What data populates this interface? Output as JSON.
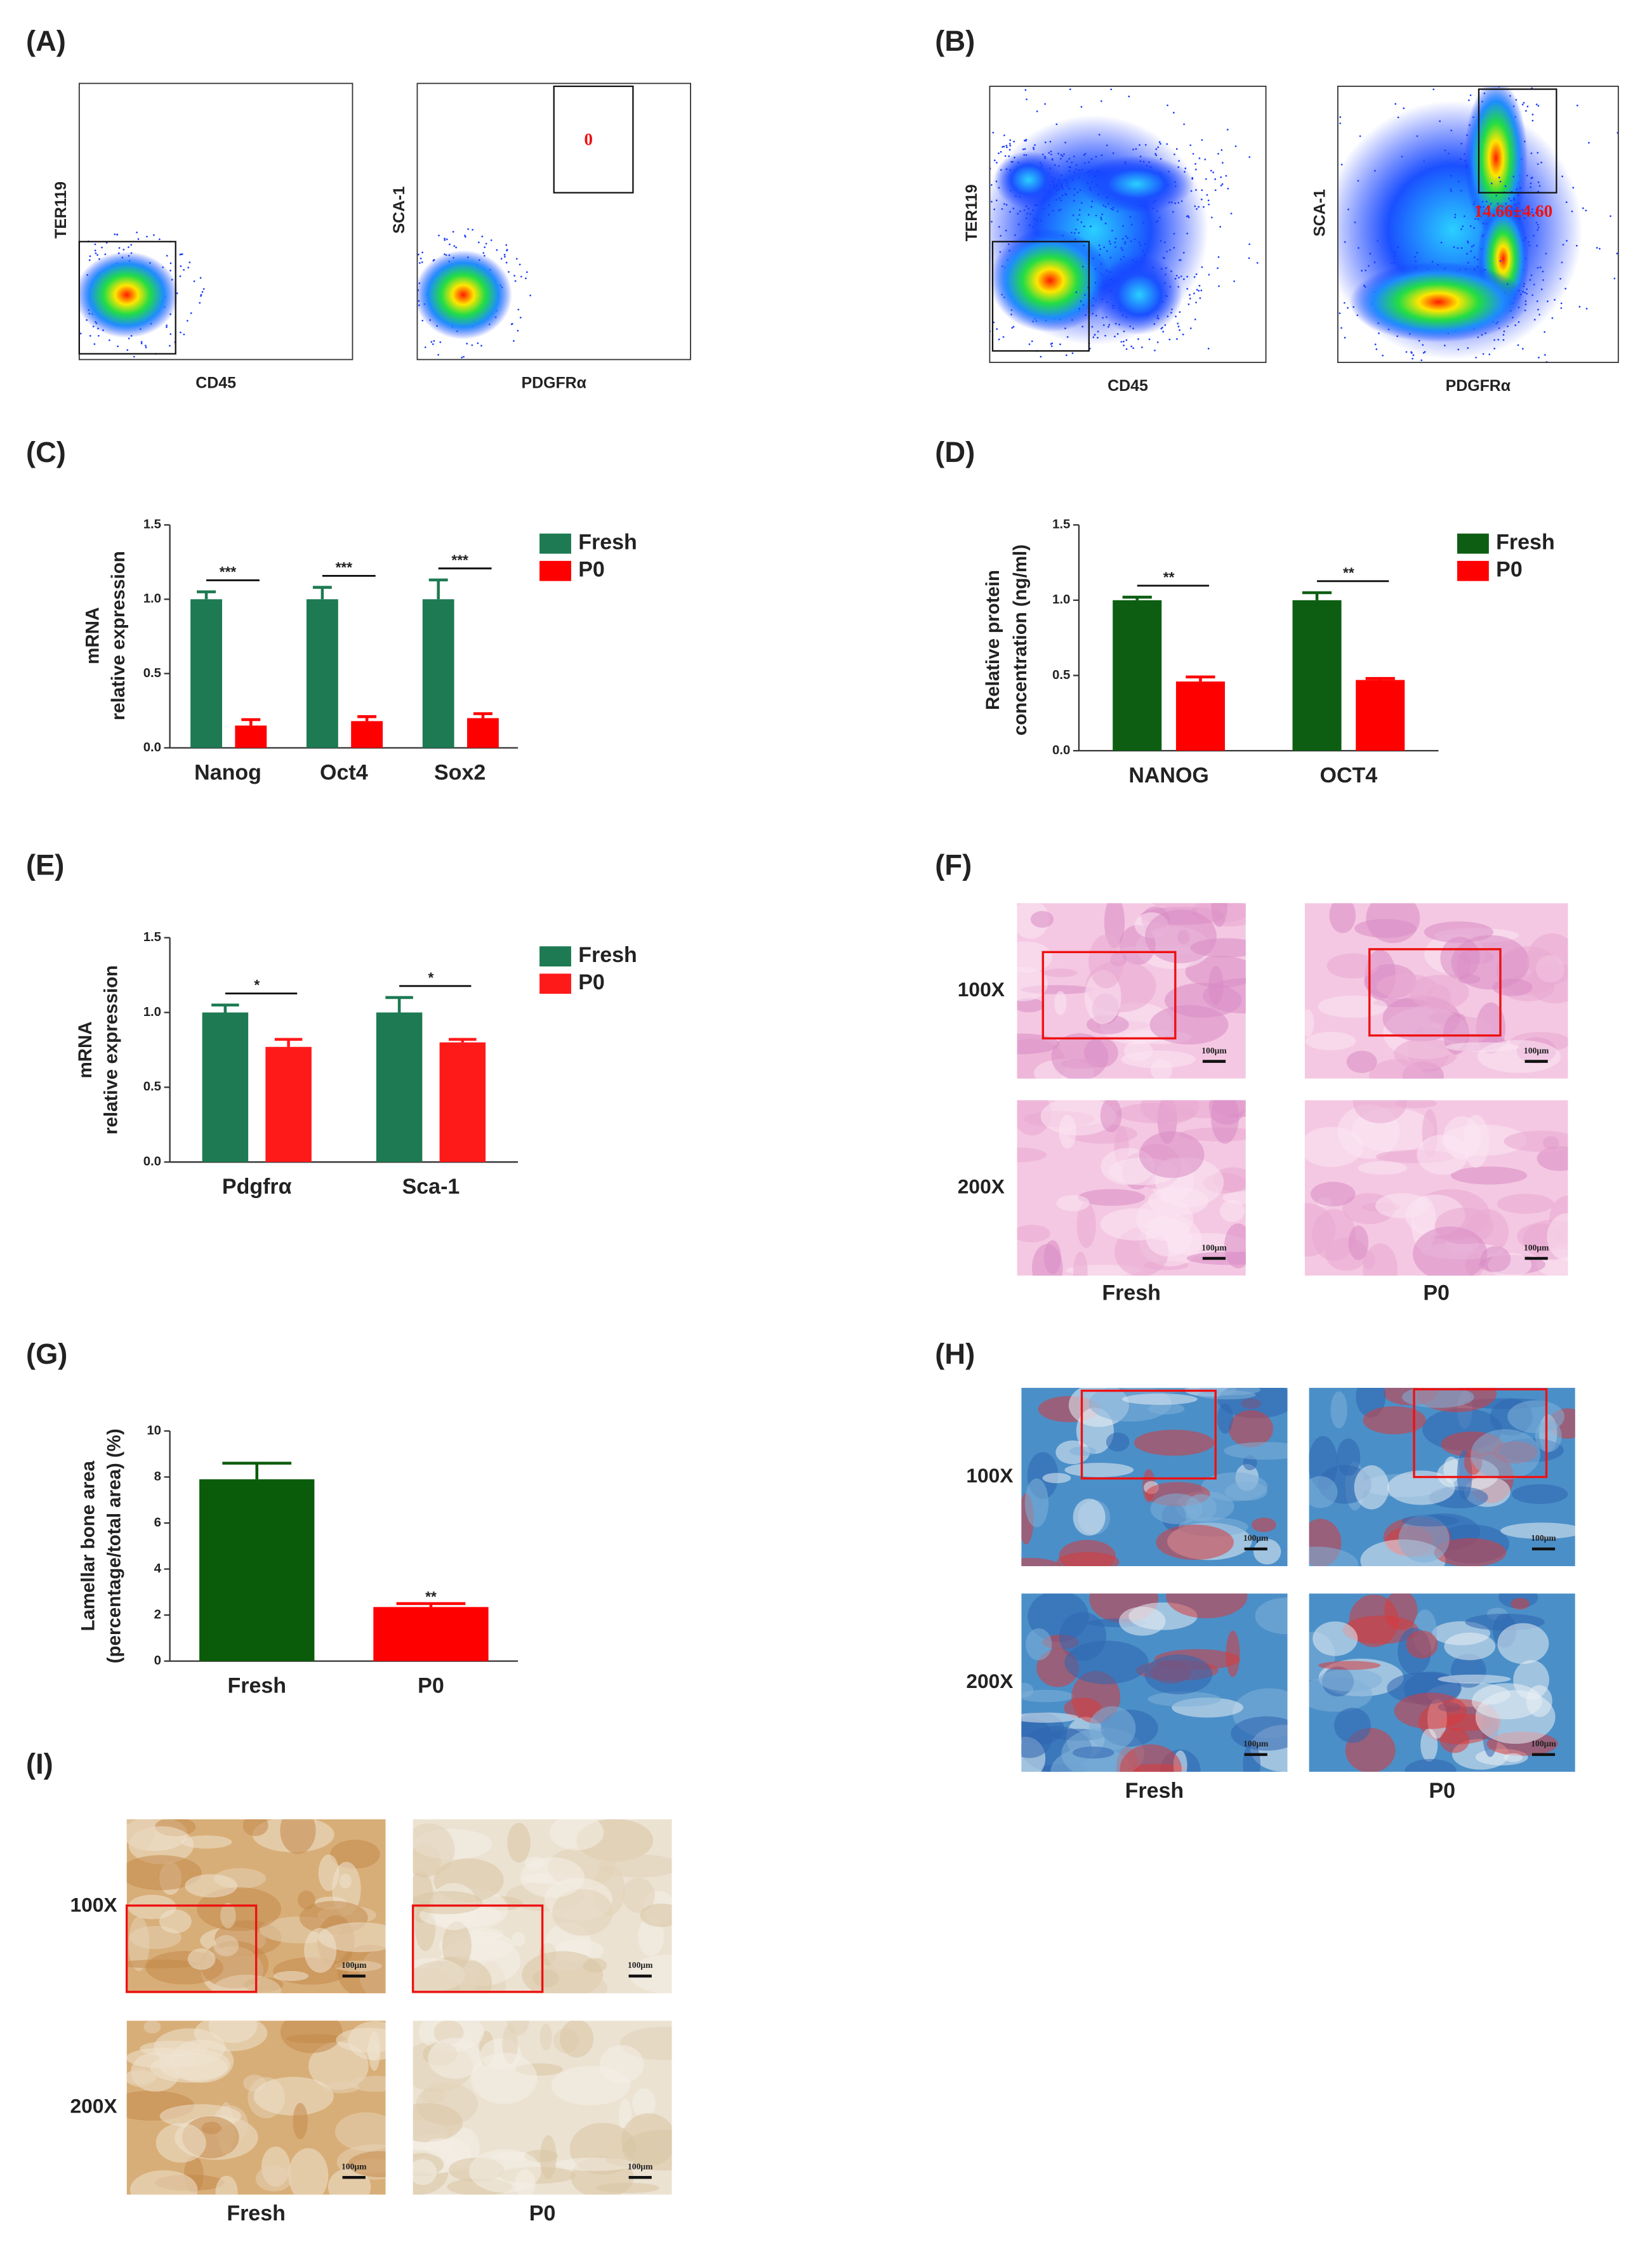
{
  "panel_labels": [
    "(A)",
    "(B)",
    "(C)",
    "(D)",
    "(E)",
    "(F)",
    "(G)",
    "(H)",
    "(I)"
  ],
  "flow": [
    {
      "plots": [
        {
          "x_label": "CD45",
          "y_label": "TER119"
        },
        {
          "x_label": "PDGFRα",
          "y_label": "SCA-1",
          "gate_label": "0"
        }
      ]
    },
    {
      "plots": [
        {
          "x_label": "CD45",
          "y_label": "TER119"
        },
        {
          "x_label": "PDGFRα",
          "y_label": "SCA-1",
          "gate_label": "14.66±4.60"
        }
      ]
    }
  ],
  "chart_data": [
    {
      "type": "bar",
      "ylabel": [
        "mRNA",
        "relative expression"
      ],
      "categories": [
        "Nanog",
        "Oct4",
        "Sox2"
      ],
      "series": [
        {
          "name": "Fresh",
          "color": "#1d7a52",
          "values": [
            1.0,
            1.0,
            1.0
          ],
          "errors": [
            0.05,
            0.08,
            0.13
          ]
        },
        {
          "name": "P0",
          "color": "#ff0000",
          "values": [
            0.15,
            0.18,
            0.2
          ],
          "errors": [
            0.04,
            0.03,
            0.03
          ]
        }
      ],
      "ylim": [
        0,
        1.5
      ],
      "yticks": [
        {
          "value": 0,
          "label": "0.0"
        },
        {
          "value": 0.5,
          "label": "0.5"
        },
        {
          "value": 1,
          "label": "1.0"
        },
        {
          "value": 1.5,
          "label": "1.5"
        }
      ],
      "annotations": [
        "***",
        "***",
        "***"
      ],
      "legend": "right"
    },
    {
      "type": "bar",
      "ylabel": [
        "Relative protein",
        "concentration (ng/ml)"
      ],
      "categories": [
        "NANOG",
        "OCT4"
      ],
      "series": [
        {
          "name": "Fresh",
          "color": "#0d5e12",
          "values": [
            1.0,
            1.0
          ],
          "errors": [
            0.02,
            0.05
          ]
        },
        {
          "name": "P0",
          "color": "#ff0000",
          "values": [
            0.46,
            0.47
          ],
          "errors": [
            0.03,
            0.01
          ]
        }
      ],
      "ylim": [
        0,
        1.5
      ],
      "yticks": [
        {
          "value": 0,
          "label": "0.0"
        },
        {
          "value": 0.5,
          "label": "0.5"
        },
        {
          "value": 1,
          "label": "1.0"
        },
        {
          "value": 1.5,
          "label": "1.5"
        }
      ],
      "annotations": [
        "**",
        "**"
      ],
      "legend": "right"
    },
    {
      "type": "bar",
      "ylabel": [
        "mRNA",
        "relative expression"
      ],
      "categories": [
        "Pdgfrα",
        "Sca-1"
      ],
      "series": [
        {
          "name": "Fresh",
          "color": "#1d7a52",
          "values": [
            1.0,
            1.0
          ],
          "errors": [
            0.05,
            0.1
          ]
        },
        {
          "name": "P0",
          "color": "#ff1a1a",
          "values": [
            0.77,
            0.8
          ],
          "errors": [
            0.05,
            0.02
          ]
        }
      ],
      "ylim": [
        0,
        1.5
      ],
      "yticks": [
        {
          "value": 0,
          "label": "0.0"
        },
        {
          "value": 0.5,
          "label": "0.5"
        },
        {
          "value": 1,
          "label": "1.0"
        },
        {
          "value": 1.5,
          "label": "1.5"
        }
      ],
      "annotations": [
        "*",
        "*"
      ],
      "legend": "right"
    },
    {
      "type": "bar",
      "ylabel": [
        "Lamellar bone area",
        "(percentage/total area) (%)"
      ],
      "categories": [
        "Fresh",
        "P0"
      ],
      "values": [
        7.9,
        2.35
      ],
      "errors": [
        0.7,
        0.15
      ],
      "colors": [
        "#0a5c0a",
        "#ff0000"
      ],
      "ylim": [
        0,
        10
      ],
      "yticks": [
        0,
        2,
        4,
        6,
        8,
        10
      ],
      "annotations": [
        null,
        "**"
      ]
    }
  ],
  "histology": [
    {
      "rows": [
        "100X",
        "200X"
      ],
      "columns": [
        "Fresh",
        "P0"
      ],
      "scale_bar": "100μm"
    },
    {
      "rows": [
        "100X",
        "200X"
      ],
      "columns": [
        "Fresh",
        "P0"
      ],
      "scale_bar": "100μm"
    },
    {
      "rows": [
        "100X",
        "200X"
      ],
      "columns": [
        "Fresh",
        "P0"
      ],
      "scale_bar": "100μm"
    }
  ]
}
